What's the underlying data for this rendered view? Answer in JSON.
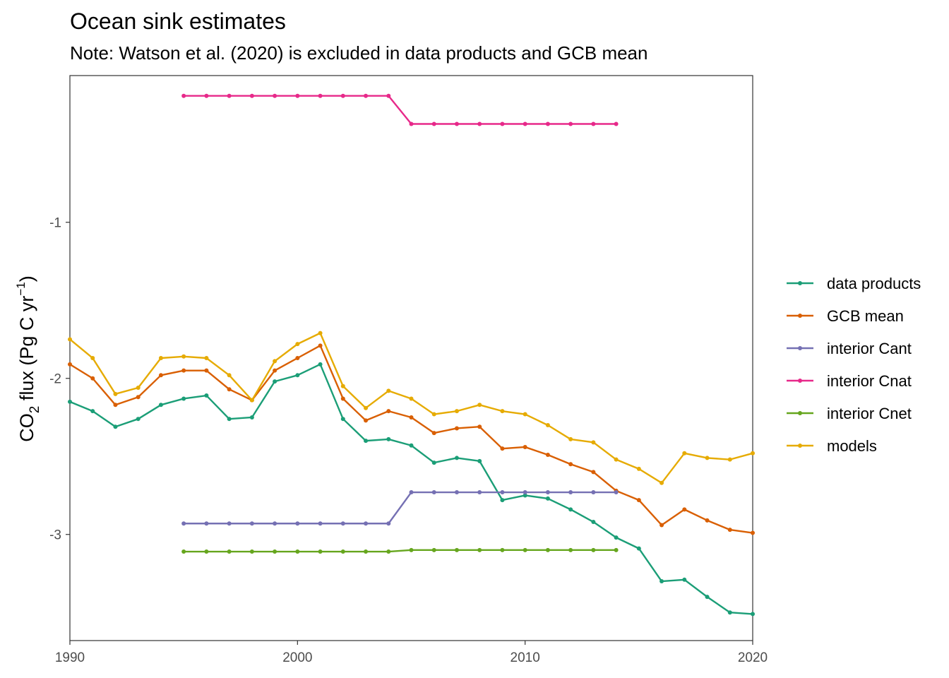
{
  "chart_data": {
    "type": "line",
    "title": "Ocean sink estimates",
    "subtitle": "Note: Watson et al. (2020) is excluded in data products and GCB mean",
    "ylabel": {
      "base": "CO",
      "sub": "2",
      "mid": " flux (Pg C yr",
      "sup": "−1",
      "end": ")"
    },
    "xlim": [
      1990,
      2020
    ],
    "ylim": [
      -3.68,
      -0.06
    ],
    "x_ticks": [
      1990,
      2000,
      2010,
      2020
    ],
    "y_ticks": [
      -1,
      -2,
      -3
    ],
    "x_tick_labels": [
      "1990",
      "2000",
      "2010",
      "2020"
    ],
    "y_tick_labels": [
      "-1",
      "-2",
      "-3"
    ],
    "grid": false,
    "legend_position": "right",
    "series": [
      {
        "name": "data products",
        "color": "#1B9E77",
        "x": [
          1990,
          1991,
          1992,
          1993,
          1994,
          1995,
          1996,
          1997,
          1998,
          1999,
          2000,
          2001,
          2002,
          2003,
          2004,
          2005,
          2006,
          2007,
          2008,
          2009,
          2010,
          2011,
          2012,
          2013,
          2014,
          2015,
          2016,
          2017,
          2018,
          2019,
          2020
        ],
        "y": [
          -2.15,
          -2.21,
          -2.31,
          -2.26,
          -2.17,
          -2.13,
          -2.11,
          -2.26,
          -2.25,
          -2.02,
          -1.98,
          -1.91,
          -2.26,
          -2.4,
          -2.39,
          -2.43,
          -2.54,
          -2.51,
          -2.53,
          -2.78,
          -2.75,
          -2.77,
          -2.84,
          -2.92,
          -3.02,
          -3.09,
          -3.3,
          -3.29,
          -3.4,
          -3.5,
          -3.51
        ]
      },
      {
        "name": "GCB mean",
        "color": "#D95F02",
        "x": [
          1990,
          1991,
          1992,
          1993,
          1994,
          1995,
          1996,
          1997,
          1998,
          1999,
          2000,
          2001,
          2002,
          2003,
          2004,
          2005,
          2006,
          2007,
          2008,
          2009,
          2010,
          2011,
          2012,
          2013,
          2014,
          2015,
          2016,
          2017,
          2018,
          2019,
          2020
        ],
        "y": [
          -1.91,
          -2.0,
          -2.17,
          -2.12,
          -1.98,
          -1.95,
          -1.95,
          -2.07,
          -2.14,
          -1.95,
          -1.87,
          -1.79,
          -2.13,
          -2.27,
          -2.21,
          -2.25,
          -2.35,
          -2.32,
          -2.31,
          -2.45,
          -2.44,
          -2.49,
          -2.55,
          -2.6,
          -2.72,
          -2.78,
          -2.94,
          -2.84,
          -2.91,
          -2.97,
          -2.99
        ]
      },
      {
        "name": "interior Cant",
        "color": "#7570B3",
        "x": [
          1995,
          1996,
          1997,
          1998,
          1999,
          2000,
          2001,
          2002,
          2003,
          2004,
          2005,
          2006,
          2007,
          2008,
          2009,
          2010,
          2011,
          2012,
          2013,
          2014
        ],
        "y": [
          -2.93,
          -2.93,
          -2.93,
          -2.93,
          -2.93,
          -2.93,
          -2.93,
          -2.93,
          -2.93,
          -2.93,
          -2.73,
          -2.73,
          -2.73,
          -2.73,
          -2.73,
          -2.73,
          -2.73,
          -2.73,
          -2.73,
          -2.73
        ]
      },
      {
        "name": "interior Cnat",
        "color": "#E7298A",
        "x": [
          1995,
          1996,
          1997,
          1998,
          1999,
          2000,
          2001,
          2002,
          2003,
          2004,
          2005,
          2006,
          2007,
          2008,
          2009,
          2010,
          2011,
          2012,
          2013,
          2014
        ],
        "y": [
          -0.19,
          -0.19,
          -0.19,
          -0.19,
          -0.19,
          -0.19,
          -0.19,
          -0.19,
          -0.19,
          -0.19,
          -0.37,
          -0.37,
          -0.37,
          -0.37,
          -0.37,
          -0.37,
          -0.37,
          -0.37,
          -0.37,
          -0.37
        ]
      },
      {
        "name": "interior Cnet",
        "color": "#66A61E",
        "x": [
          1995,
          1996,
          1997,
          1998,
          1999,
          2000,
          2001,
          2002,
          2003,
          2004,
          2005,
          2006,
          2007,
          2008,
          2009,
          2010,
          2011,
          2012,
          2013,
          2014
        ],
        "y": [
          -3.11,
          -3.11,
          -3.11,
          -3.11,
          -3.11,
          -3.11,
          -3.11,
          -3.11,
          -3.11,
          -3.11,
          -3.1,
          -3.1,
          -3.1,
          -3.1,
          -3.1,
          -3.1,
          -3.1,
          -3.1,
          -3.1,
          -3.1
        ]
      },
      {
        "name": "models",
        "color": "#E6AB02",
        "x": [
          1990,
          1991,
          1992,
          1993,
          1994,
          1995,
          1996,
          1997,
          1998,
          1999,
          2000,
          2001,
          2002,
          2003,
          2004,
          2005,
          2006,
          2007,
          2008,
          2009,
          2010,
          2011,
          2012,
          2013,
          2014,
          2015,
          2016,
          2017,
          2018,
          2019,
          2020
        ],
        "y": [
          -1.75,
          -1.87,
          -2.1,
          -2.06,
          -1.87,
          -1.86,
          -1.87,
          -1.98,
          -2.14,
          -1.89,
          -1.78,
          -1.71,
          -2.05,
          -2.19,
          -2.08,
          -2.13,
          -2.23,
          -2.21,
          -2.17,
          -2.21,
          -2.23,
          -2.3,
          -2.39,
          -2.41,
          -2.52,
          -2.58,
          -2.67,
          -2.48,
          -2.51,
          -2.52,
          -2.48
        ]
      }
    ]
  }
}
